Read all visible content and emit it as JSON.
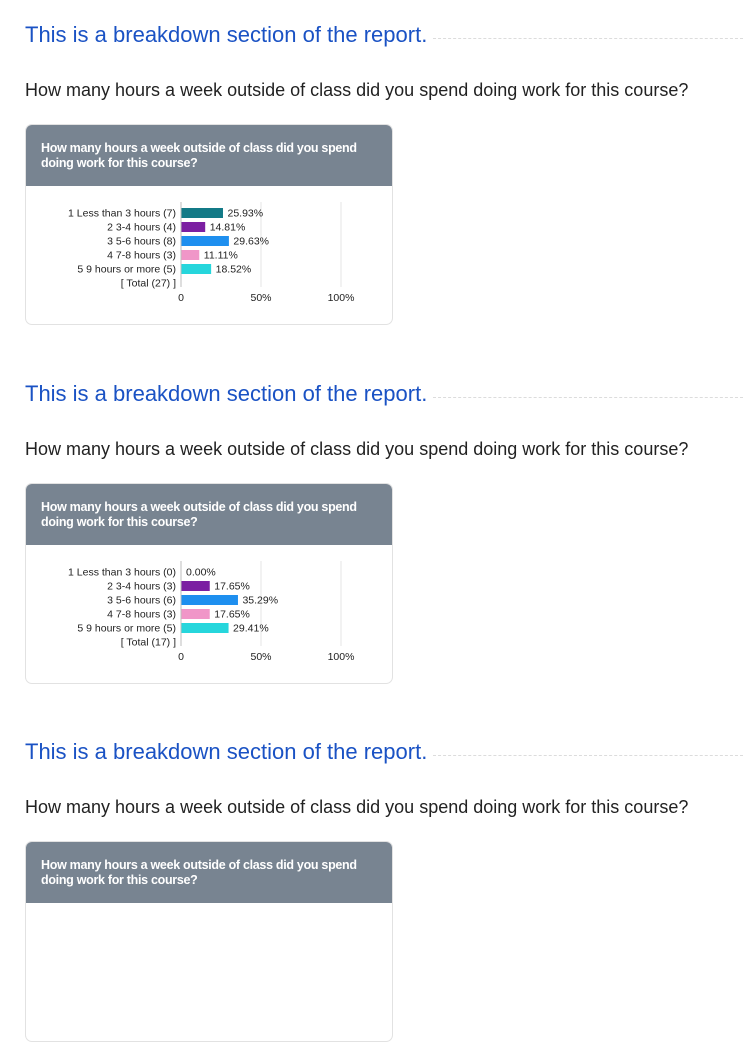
{
  "sections": [
    {
      "heading": "This is a breakdown section of the report.",
      "question": "How many hours a week outside of class did you spend doing work for this course?",
      "card_title": "How many hours a week outside of class did you spend doing work for this course?"
    },
    {
      "heading": "This is a breakdown section of the report.",
      "question": "How many hours a week outside of class did you spend doing work for this course?",
      "card_title": "How many hours a week outside of class did you spend doing work for this course?"
    },
    {
      "heading": "This is a breakdown section of the report.",
      "question": "How many hours a week outside of class did you spend doing work for this course?",
      "card_title": "How many hours a week outside of class did you spend doing work for this course?"
    }
  ],
  "chart_data": [
    {
      "type": "bar",
      "orientation": "horizontal",
      "title": "How many hours a week outside of class did you spend doing work for this course?",
      "categories": [
        "1 Less than 3 hours (7)",
        "2 3-4 hours (4)",
        "3 5-6 hours (8)",
        "4 7-8 hours (3)",
        "5 9 hours or more (5)"
      ],
      "values": [
        25.93,
        14.81,
        29.63,
        11.11,
        18.52
      ],
      "value_labels": [
        "25.93%",
        "14.81%",
        "29.63%",
        "11.11%",
        "18.52%"
      ],
      "total_label": "[ Total (27) ]",
      "xlim": [
        0,
        100
      ],
      "xticks": [
        "0",
        "50%",
        "100%"
      ],
      "colors": [
        "#137a87",
        "#7b1fa2",
        "#1e8fef",
        "#f096c8",
        "#26d6dc"
      ],
      "grid": true
    },
    {
      "type": "bar",
      "orientation": "horizontal",
      "title": "How many hours a week outside of class did you spend doing work for this course?",
      "categories": [
        "1 Less than 3 hours (0)",
        "2 3-4 hours (3)",
        "3 5-6 hours (6)",
        "4 7-8 hours (3)",
        "5 9 hours or more (5)"
      ],
      "values": [
        0.0,
        17.65,
        35.29,
        17.65,
        29.41
      ],
      "value_labels": [
        "0.00%",
        "17.65%",
        "35.29%",
        "17.65%",
        "29.41%"
      ],
      "total_label": "[ Total (17) ]",
      "xlim": [
        0,
        100
      ],
      "xticks": [
        "0",
        "50%",
        "100%"
      ],
      "colors": [
        "#137a87",
        "#7b1fa2",
        "#1e8fef",
        "#f096c8",
        "#26d6dc"
      ],
      "grid": true
    }
  ]
}
